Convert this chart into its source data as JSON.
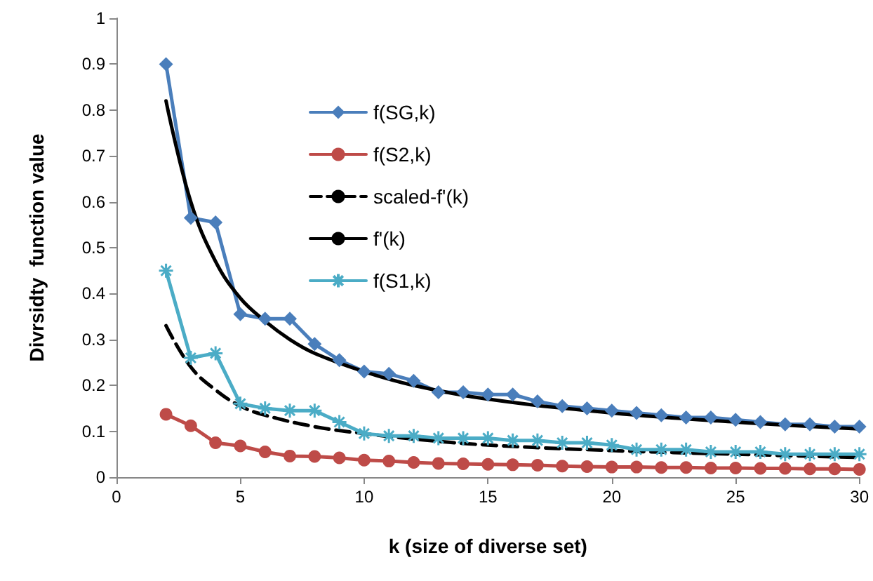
{
  "chart_data": {
    "type": "line",
    "xlabel": "k (size of diverse set)",
    "ylabel": "Divrsidty  function value",
    "x": [
      2,
      3,
      4,
      5,
      6,
      7,
      8,
      9,
      10,
      11,
      12,
      13,
      14,
      15,
      16,
      17,
      18,
      19,
      20,
      21,
      22,
      23,
      24,
      25,
      26,
      27,
      28,
      29,
      30
    ],
    "series": [
      {
        "name": "f(SG,k)",
        "color": "#4a7ebb",
        "marker": "diamond",
        "line_style": "solid",
        "values": [
          0.9,
          0.565,
          0.555,
          0.355,
          0.345,
          0.345,
          0.29,
          0.255,
          0.23,
          0.225,
          0.21,
          0.185,
          0.185,
          0.18,
          0.18,
          0.165,
          0.155,
          0.15,
          0.145,
          0.14,
          0.135,
          0.13,
          0.13,
          0.125,
          0.12,
          0.115,
          0.115,
          0.11,
          0.11
        ]
      },
      {
        "name": "f(S2,k)",
        "color": "#be4b48",
        "marker": "circle",
        "line_style": "solid",
        "values": [
          0.137,
          0.112,
          0.075,
          0.068,
          0.055,
          0.046,
          0.045,
          0.042,
          0.037,
          0.035,
          0.032,
          0.03,
          0.029,
          0.028,
          0.027,
          0.026,
          0.024,
          0.023,
          0.022,
          0.022,
          0.021,
          0.021,
          0.02,
          0.02,
          0.019,
          0.019,
          0.018,
          0.018,
          0.017
        ]
      },
      {
        "name": "scaled-f'(k)",
        "color": "#000000",
        "marker": "none",
        "line_style": "dashed",
        "x": [
          2,
          3,
          4,
          5,
          6,
          8,
          10,
          12,
          15,
          20,
          25,
          30
        ],
        "values": [
          0.33,
          0.24,
          0.19,
          0.155,
          0.135,
          0.11,
          0.095,
          0.083,
          0.07,
          0.058,
          0.05,
          0.043
        ]
      },
      {
        "name": "f'(k)",
        "color": "#000000",
        "marker": "none",
        "line_style": "solid",
        "x": [
          2,
          3,
          4,
          5,
          6,
          7,
          8,
          10,
          12,
          15,
          20,
          25,
          30
        ],
        "values": [
          0.82,
          0.6,
          0.47,
          0.39,
          0.34,
          0.3,
          0.27,
          0.23,
          0.2,
          0.17,
          0.14,
          0.12,
          0.105
        ]
      },
      {
        "name": "f(S1,k)",
        "color": "#4bacc6",
        "marker": "cross",
        "line_style": "solid",
        "values": [
          0.45,
          0.26,
          0.27,
          0.16,
          0.15,
          0.145,
          0.145,
          0.12,
          0.095,
          0.09,
          0.09,
          0.085,
          0.085,
          0.085,
          0.08,
          0.08,
          0.075,
          0.075,
          0.07,
          0.06,
          0.06,
          0.06,
          0.055,
          0.055,
          0.055,
          0.05,
          0.05,
          0.05,
          0.05
        ]
      }
    ],
    "xlim": [
      0,
      30
    ],
    "xticks": [
      0,
      5,
      10,
      15,
      20,
      25,
      30
    ],
    "ylim": [
      0,
      1
    ],
    "yticks": [
      0,
      0.1,
      0.2,
      0.3,
      0.4,
      0.5,
      0.6,
      0.7,
      0.8,
      0.9,
      1
    ],
    "grid": false,
    "legend": "top"
  }
}
